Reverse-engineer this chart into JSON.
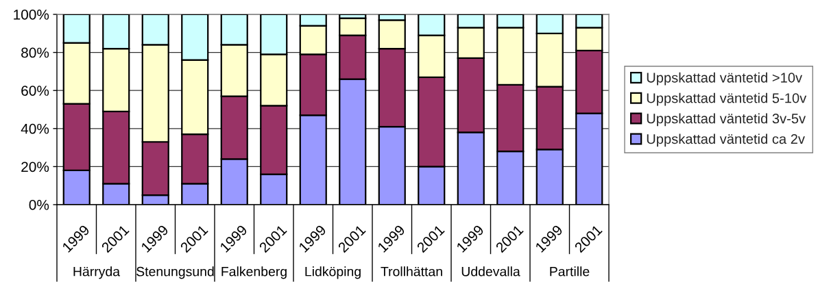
{
  "chart_data": {
    "type": "bar",
    "stacked": true,
    "categories": [
      "1999",
      "2001",
      "1999",
      "2001",
      "1999",
      "2001",
      "1999",
      "2001",
      "1999",
      "2001",
      "1999",
      "2001",
      "1999",
      "2001"
    ],
    "annotations": [
      "Härryda",
      "Stenungsund",
      "Falkenberg",
      "Lidköping",
      "Trollhättan",
      "Uddevalla",
      "Partille"
    ],
    "series": [
      {
        "name": "Uppskattad väntetid ca 2v",
        "color": "#9999ff",
        "values": [
          18,
          11,
          5,
          11,
          24,
          16,
          47,
          66,
          41,
          20,
          38,
          28,
          29,
          48
        ]
      },
      {
        "name": "Uppskattad väntetid 3v-5v",
        "color": "#993366",
        "values": [
          35,
          38,
          28,
          26,
          33,
          36,
          32,
          23,
          41,
          47,
          39,
          35,
          33,
          33
        ]
      },
      {
        "name": "Uppskattad väntetid 5-10v",
        "color": "#ffffcc",
        "values": [
          32,
          33,
          51,
          39,
          27,
          27,
          15,
          9,
          15,
          22,
          16,
          30,
          28,
          12
        ]
      },
      {
        "name": "Uppskattad väntetid >10v",
        "color": "#ccffff",
        "values": [
          15,
          18,
          16,
          24,
          16,
          21,
          6,
          2,
          3,
          11,
          7,
          7,
          10,
          7
        ]
      }
    ],
    "ylim": [
      0,
      100
    ],
    "yticks": [
      {
        "value": 0,
        "label": "0%"
      },
      {
        "value": 20,
        "label": "20%"
      },
      {
        "value": 40,
        "label": "40%"
      },
      {
        "value": 60,
        "label": "60%"
      },
      {
        "value": 80,
        "label": "80%"
      },
      {
        "value": 100,
        "label": "100%"
      }
    ],
    "grid": "y",
    "legend": "right"
  }
}
